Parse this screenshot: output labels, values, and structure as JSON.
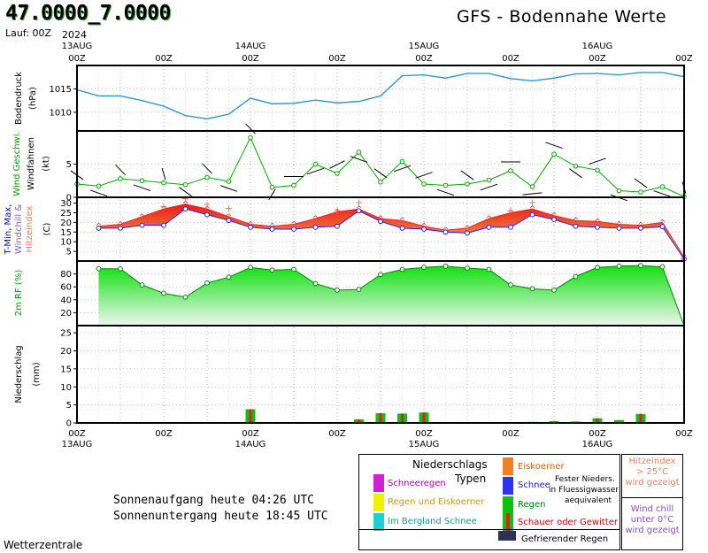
{
  "header": {
    "coords": "47.0000_7.0000",
    "run": "Lauf: 00Z",
    "year_top": "2024",
    "title": "GFS - Bodennahe Werte"
  },
  "axis": {
    "top_dates": [
      "13AUG",
      "14AUG",
      "15AUG",
      "16AUG"
    ],
    "bottom_dates": [
      "13AUG",
      "14AUG",
      "15AUG",
      "16AUG"
    ],
    "hour_labels": [
      "00Z",
      "12Z",
      "00Z",
      "12Z",
      "00Z",
      "12Z",
      "00Z",
      "12Z"
    ],
    "year_bottom": "2024"
  },
  "legend": {
    "title_line1": "Niederschlags",
    "title_line2": "Typen",
    "items": [
      {
        "label": "Schneeregen",
        "color": "#d020d0",
        "text_color": "#b000b0"
      },
      {
        "label": "Regen und Eiskoerner",
        "color": "#f0f000",
        "text_color": "#c0a000"
      },
      {
        "label": "Im Bergland Schnee",
        "color": "#20d0d0",
        "text_color": "#00a0a0"
      },
      {
        "label": "Eiskoerner",
        "color": "#f08020",
        "text_color": "#e06000"
      },
      {
        "label": "Schnee",
        "color": "#3030f0",
        "text_color": "#2020d0"
      },
      {
        "label": "Regen",
        "color": "#10c010",
        "text_color": "#008000"
      },
      {
        "label": "Schauer oder Gewitter",
        "color": "#e02020",
        "text_color": "#d00000"
      },
      {
        "label": "Gefrierender Regen",
        "color": "#303050",
        "text_color": "#000000"
      }
    ],
    "fester_note": [
      "Fester Nieders.",
      "in Fluessigwasser",
      "aequivalent"
    ],
    "hitze_note": [
      "Hitzeindex",
      "> 25°C",
      "wird gezeigt"
    ],
    "windchill_note": [
      "Wind chill",
      "unter 0°C",
      "wird gezeigt"
    ]
  },
  "sun": {
    "sunrise": "Sonnenaufgang heute 04:26 UTC",
    "sunset": "Sonnenuntergang heute 18:45 UTC"
  },
  "credit": "Wetterzentrale",
  "colors": {
    "pressure_line": "#1e90dd",
    "wind_line": "#00aa00",
    "tmin_line": "#2020ff",
    "tmax_line": "#ff2020",
    "heat_fill": "#f09030",
    "rh_fill": "#10d010",
    "rain": "#10c010",
    "shower": "#e02020"
  },
  "chart_data": [
    {
      "type": "line",
      "name": "pressure",
      "ylabel": "Bodendruck (hPa)",
      "ylim": [
        1006,
        1020
      ],
      "yticks": [
        1010,
        1015
      ],
      "x_hours": [
        0,
        6,
        12,
        18,
        24,
        30,
        36,
        42,
        48,
        54,
        60,
        66,
        72,
        78,
        84,
        90,
        96,
        102,
        108,
        114,
        120,
        126,
        132,
        138,
        144,
        150,
        156,
        162,
        168
      ],
      "values": [
        1014.8,
        1013.5,
        1013.5,
        1012.5,
        1011.3,
        1009.3,
        1008.6,
        1009.6,
        1013.0,
        1011.8,
        1011.9,
        1012.6,
        1012.0,
        1012.3,
        1013.5,
        1017.8,
        1018.0,
        1017.3,
        1018.3,
        1018.3,
        1017.2,
        1016.7,
        1017.3,
        1018.2,
        1018.3,
        1018.0,
        1018.5,
        1018.5,
        1017.6
      ]
    },
    {
      "type": "line",
      "name": "wind",
      "ylabel": "Wind Geschwi. Windfahnen (kt)",
      "ylim": [
        0,
        10
      ],
      "yticks": [
        0,
        5
      ],
      "x_hours": [
        0,
        6,
        12,
        18,
        24,
        30,
        36,
        42,
        48,
        54,
        60,
        66,
        72,
        78,
        84,
        90,
        96,
        102,
        108,
        114,
        120,
        126,
        132,
        138,
        144,
        150,
        156,
        162,
        168
      ],
      "values": [
        2.0,
        1.7,
        2.8,
        2.5,
        2.2,
        1.9,
        3.0,
        2.4,
        9.0,
        1.5,
        1.8,
        5.0,
        3.6,
        6.8,
        2.3,
        5.4,
        2.0,
        1.8,
        2.0,
        2.6,
        4.0,
        1.6,
        6.5,
        4.7,
        4.1,
        1.0,
        0.8,
        1.6,
        0.1
      ],
      "barb_dirs": [
        320,
        300,
        330,
        300,
        350,
        320,
        330,
        300,
        330,
        20,
        90,
        60,
        50,
        300,
        320,
        60,
        60,
        300,
        320,
        60,
        90,
        80,
        300,
        320,
        60,
        300,
        320,
        300,
        350
      ]
    },
    {
      "type": "area",
      "name": "temperature",
      "ylabel": "T-Min, Max, Windchill & Hitzeindex (C)",
      "ylim": [
        0,
        33
      ],
      "yticks": [
        5,
        10,
        15,
        20,
        25,
        30
      ],
      "x_hours": [
        6,
        12,
        18,
        24,
        30,
        36,
        42,
        48,
        54,
        60,
        66,
        72,
        78,
        84,
        90,
        96,
        102,
        108,
        114,
        120,
        126,
        132,
        138,
        144,
        150,
        156,
        162,
        168
      ],
      "series": [
        {
          "name": "T-Min",
          "values": [
            17,
            17,
            18.5,
            18.5,
            27,
            24,
            21,
            17.5,
            16.5,
            16.5,
            17.5,
            18,
            26,
            20.5,
            17,
            16.5,
            15,
            14.5,
            17.5,
            17.5,
            24,
            21.5,
            18,
            17.5,
            17,
            17,
            17.8,
            1
          ]
        },
        {
          "name": "T-Max",
          "values": [
            18,
            19,
            23,
            27,
            29.5,
            27,
            23,
            19,
            18,
            19,
            22,
            25.5,
            27,
            22,
            21,
            18,
            16,
            17,
            22,
            25,
            27,
            23.5,
            21,
            20.5,
            19,
            18.5,
            20,
            2
          ]
        },
        {
          "name": "Hitzeindex",
          "values": [
            null,
            null,
            null,
            28,
            32,
            29,
            27,
            null,
            null,
            null,
            null,
            26,
            30,
            null,
            null,
            null,
            null,
            null,
            null,
            26,
            30,
            null,
            null,
            null,
            null,
            null,
            null,
            null
          ]
        }
      ]
    },
    {
      "type": "area",
      "name": "relative_humidity",
      "ylabel": "2m RF (%)",
      "ylim": [
        0,
        100
      ],
      "yticks": [
        20,
        40,
        60,
        80
      ],
      "x_hours": [
        6,
        12,
        18,
        24,
        30,
        36,
        42,
        48,
        54,
        60,
        66,
        72,
        78,
        84,
        90,
        96,
        102,
        108,
        114,
        120,
        126,
        132,
        138,
        144,
        150,
        156,
        162,
        168
      ],
      "values": [
        88,
        88,
        63,
        50,
        44,
        66,
        75,
        90,
        86,
        87,
        65,
        55,
        56,
        79,
        87,
        90,
        92,
        89,
        87,
        63,
        57,
        55,
        76,
        90,
        92,
        93,
        91,
        0
      ]
    },
    {
      "type": "bar",
      "name": "precipitation",
      "ylabel": "Niederschlag (mm)",
      "ylim": [
        0,
        27
      ],
      "yticks": [
        0,
        5,
        10,
        15,
        20,
        25
      ],
      "x_hours": [
        30,
        48,
        78,
        84,
        90,
        96,
        126,
        132,
        138,
        144,
        150,
        156,
        162
      ],
      "values": [
        0.2,
        3.8,
        1.0,
        2.7,
        2.6,
        2.9,
        0.3,
        0.5,
        0.4,
        1.3,
        0.8,
        2.5,
        0.2
      ],
      "shower": [
        false,
        true,
        true,
        true,
        true,
        true,
        false,
        false,
        false,
        true,
        false,
        true,
        false
      ]
    }
  ]
}
